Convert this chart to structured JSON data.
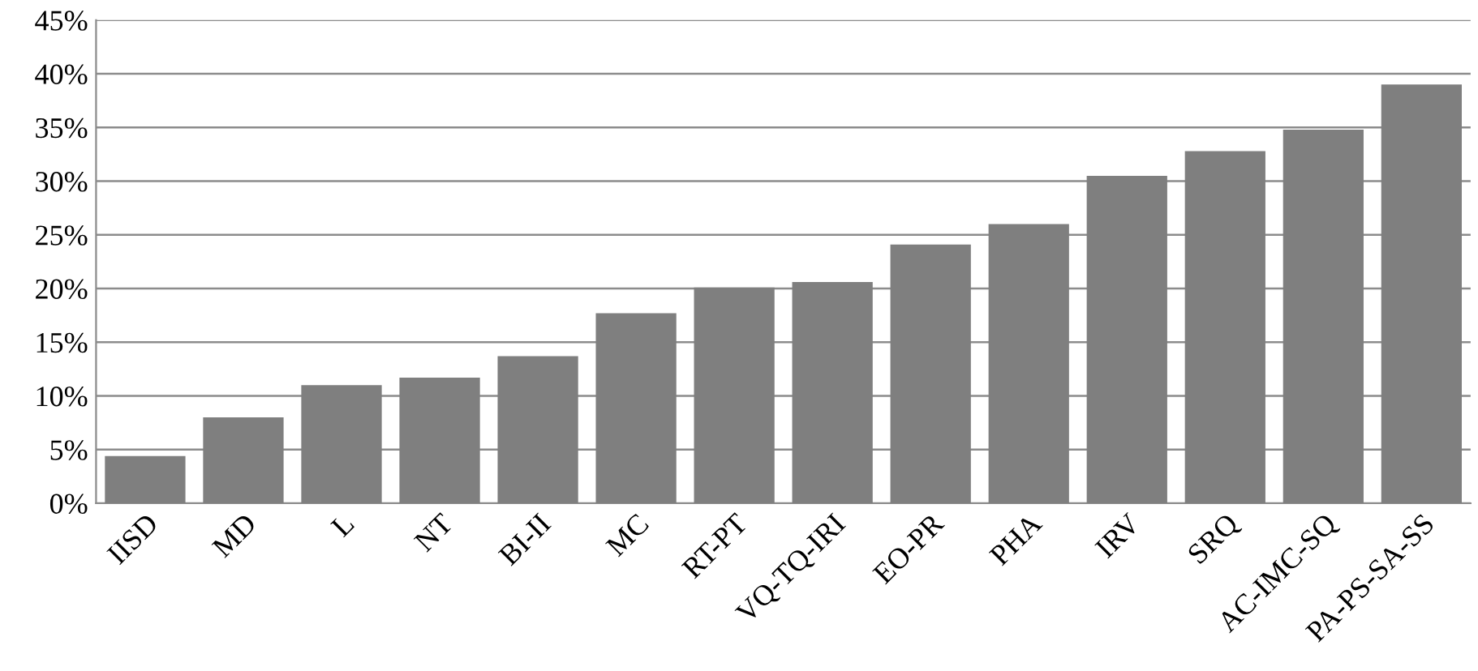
{
  "chart_data": {
    "type": "bar",
    "categories": [
      "IISD",
      "MD",
      "L",
      "NT",
      "BI-II",
      "MC",
      "RT-PT",
      "VQ-TQ-IRI",
      "EO-PR",
      "PHA",
      "IRV",
      "SRQ",
      "AC-IMC-SQ",
      "PA-PS-SA-SS"
    ],
    "values": [
      4.4,
      8.0,
      11.0,
      11.7,
      13.7,
      17.7,
      20.1,
      20.6,
      24.1,
      26.0,
      30.5,
      32.8,
      34.8,
      39.0
    ],
    "color": "#7f7f7f",
    "ylim": [
      0,
      45
    ],
    "yticks": [
      {
        "value": 0,
        "label": "0%"
      },
      {
        "value": 5,
        "label": "5%"
      },
      {
        "value": 10,
        "label": "10%"
      },
      {
        "value": 15,
        "label": "15%"
      },
      {
        "value": 20,
        "label": "20%"
      },
      {
        "value": 25,
        "label": "25%"
      },
      {
        "value": 30,
        "label": "30%"
      },
      {
        "value": 35,
        "label": "35%"
      },
      {
        "value": 40,
        "label": "40%"
      },
      {
        "value": 45,
        "label": "45%"
      }
    ],
    "grid": "y"
  }
}
